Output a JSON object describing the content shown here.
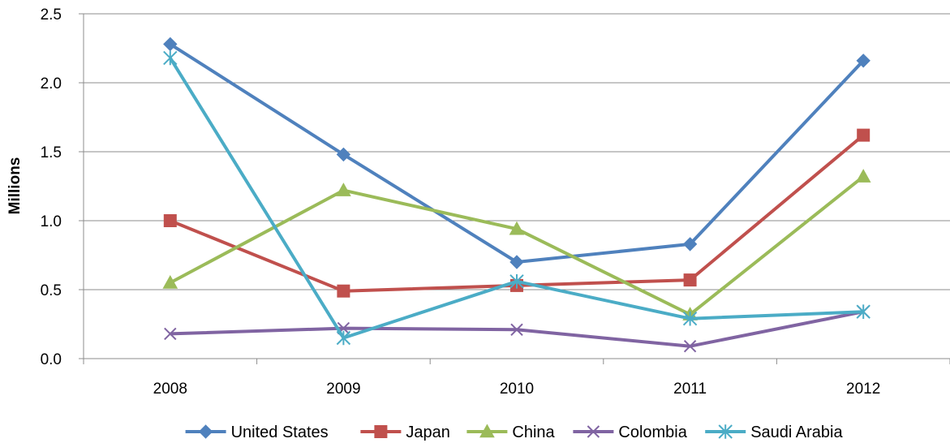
{
  "chart_data": {
    "type": "line",
    "title": "",
    "xlabel": "",
    "ylabel": "Millions",
    "categories": [
      "2008",
      "2009",
      "2010",
      "2011",
      "2012"
    ],
    "ylim": [
      0,
      2.5
    ],
    "yticks": [
      "0.0",
      "0.5",
      "1.0",
      "1.5",
      "2.0",
      "2.5"
    ],
    "ytick_values": [
      0,
      0.5,
      1.0,
      1.5,
      2.0,
      2.5
    ],
    "grid": "horizontal",
    "legend_position": "bottom",
    "series": [
      {
        "name": "United States",
        "color": "#4F81BD",
        "marker": "diamond",
        "values": [
          2.28,
          1.48,
          0.7,
          0.83,
          2.16
        ]
      },
      {
        "name": "Japan",
        "color": "#C0504D",
        "marker": "square",
        "values": [
          1.0,
          0.49,
          0.53,
          0.57,
          1.62
        ]
      },
      {
        "name": "China",
        "color": "#9BBB59",
        "marker": "triangle",
        "values": [
          0.55,
          1.22,
          0.94,
          0.32,
          1.32
        ]
      },
      {
        "name": "Colombia",
        "color": "#8064A2",
        "marker": "x",
        "values": [
          0.18,
          0.22,
          0.21,
          0.09,
          0.34
        ]
      },
      {
        "name": "Saudi Arabia",
        "color": "#4BACC6",
        "marker": "star",
        "values": [
          2.18,
          0.15,
          0.56,
          0.29,
          0.34
        ]
      }
    ]
  }
}
